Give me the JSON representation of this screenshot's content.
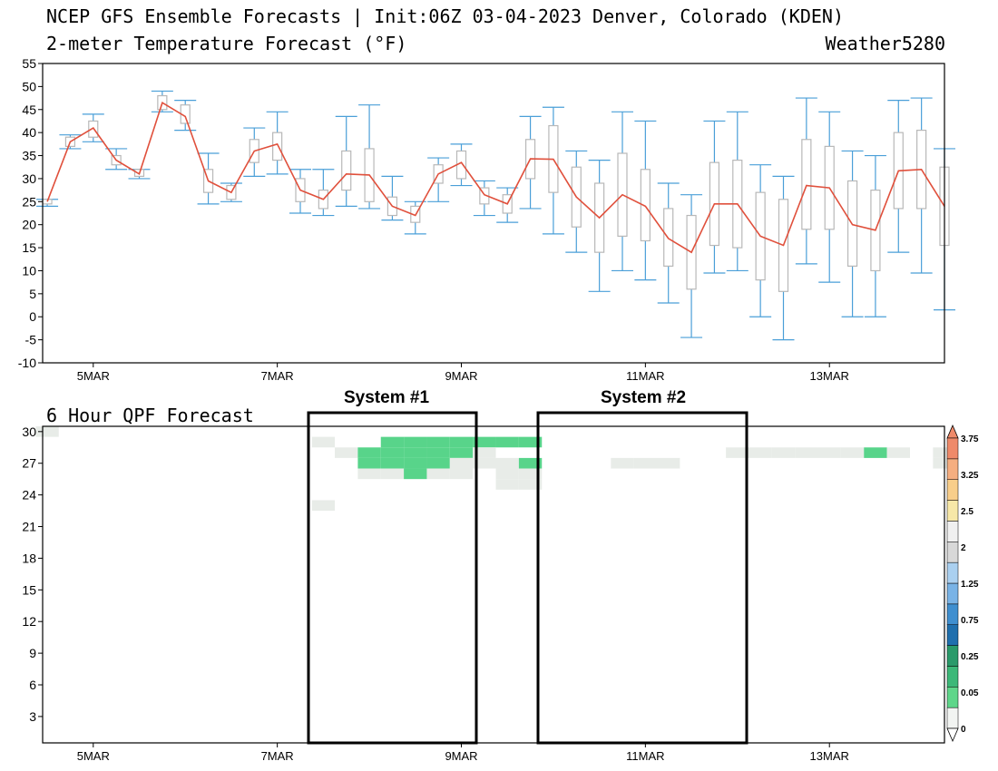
{
  "header": {
    "title": "NCEP GFS Ensemble Forecasts | Init:06Z 03-04-2023 Denver, Colorado (KDEN)",
    "subtitle": "2-meter Temperature Forecast (°F)",
    "brand": "Weather5280",
    "qpf_title": "6 Hour QPF Forecast"
  },
  "annotations": {
    "system1": "System #1",
    "system2": "System #2"
  },
  "colors": {
    "mean_line": "#e0503c",
    "whisker": "#4a9fd8",
    "box": "#b8b8b8"
  },
  "chart_data": [
    {
      "type": "box",
      "x_ticks": [
        {
          "x": 5,
          "label": "5MAR"
        },
        {
          "x": 7,
          "label": "7MAR"
        },
        {
          "x": 9,
          "label": "9MAR"
        },
        {
          "x": 11,
          "label": "11MAR"
        },
        {
          "x": 13,
          "label": "13MAR"
        }
      ],
      "xlim": [
        4.45,
        14.25
      ],
      "ylim": [
        -10,
        55
      ],
      "y_ticks": [
        -10,
        -5,
        0,
        5,
        10,
        15,
        20,
        25,
        30,
        35,
        40,
        45,
        50,
        55
      ],
      "x": [
        4.5,
        4.75,
        5.0,
        5.25,
        5.5,
        5.75,
        6.0,
        6.25,
        6.5,
        6.75,
        7.0,
        7.25,
        7.5,
        7.75,
        8.0,
        8.25,
        8.5,
        8.75,
        9.0,
        9.25,
        9.5,
        9.75,
        10.0,
        10.25,
        10.5,
        10.75,
        11.0,
        11.25,
        11.5,
        11.75,
        12.0,
        12.25,
        12.5,
        12.75,
        13.0,
        13.25,
        13.5,
        13.75,
        14.0,
        14.25
      ],
      "mean": [
        25,
        38,
        41,
        34,
        31,
        46.5,
        43.5,
        29.5,
        27,
        36,
        37.5,
        27.5,
        25.5,
        31,
        30.8,
        24,
        22,
        31,
        33.5,
        26.5,
        24.5,
        34.3,
        34.2,
        26,
        21.5,
        26.5,
        24,
        17,
        14,
        24.5,
        24.5,
        17.5,
        15.5,
        28.5,
        28,
        20,
        18.8,
        31.7,
        32,
        24
      ],
      "boxes": [
        [
          24.5,
          25.5
        ],
        [
          37,
          39
        ],
        [
          39,
          42.5
        ],
        [
          33,
          35
        ],
        [
          30.5,
          32
        ],
        [
          45,
          48
        ],
        [
          42,
          46
        ],
        [
          27,
          32
        ],
        [
          25.5,
          28.5
        ],
        [
          33.5,
          38.5
        ],
        [
          34,
          40
        ],
        [
          25,
          30
        ],
        [
          23.5,
          27.5
        ],
        [
          27.5,
          36
        ],
        [
          25,
          36.5
        ],
        [
          22,
          26
        ],
        [
          20.5,
          24
        ],
        [
          29,
          33
        ],
        [
          30,
          36
        ],
        [
          24.5,
          28
        ],
        [
          22.5,
          26.5
        ],
        [
          30,
          38.5
        ],
        [
          27,
          41.5
        ],
        [
          19.5,
          32.5
        ],
        [
          14,
          29
        ],
        [
          17.5,
          35.5
        ],
        [
          16.5,
          32
        ],
        [
          11,
          23.5
        ],
        [
          6,
          22
        ],
        [
          15.5,
          33.5
        ],
        [
          15,
          34
        ],
        [
          8,
          27
        ],
        [
          5.5,
          25.5
        ],
        [
          19,
          38.5
        ],
        [
          19,
          37
        ],
        [
          11,
          29.5
        ],
        [
          10,
          27.5
        ],
        [
          23.5,
          40
        ],
        [
          23.5,
          40.5
        ],
        [
          15.5,
          32.5
        ]
      ],
      "whiskers": [
        [
          24,
          25.5
        ],
        [
          36.5,
          39.5
        ],
        [
          38,
          44
        ],
        [
          32,
          36.5
        ],
        [
          30,
          32
        ],
        [
          44.5,
          49
        ],
        [
          40.5,
          47
        ],
        [
          24.5,
          35.5
        ],
        [
          25,
          29
        ],
        [
          30.5,
          41
        ],
        [
          31,
          44.5
        ],
        [
          22.5,
          32
        ],
        [
          22,
          32
        ],
        [
          24,
          43.5
        ],
        [
          23.5,
          46
        ],
        [
          21,
          30.5
        ],
        [
          18,
          25
        ],
        [
          25,
          34.5
        ],
        [
          28.5,
          37.5
        ],
        [
          22,
          29.5
        ],
        [
          20.5,
          28
        ],
        [
          23.5,
          43.5
        ],
        [
          18,
          45.5
        ],
        [
          14,
          36
        ],
        [
          5.5,
          34
        ],
        [
          10,
          44.5
        ],
        [
          8,
          42.5
        ],
        [
          3,
          29
        ],
        [
          -4.5,
          26.5
        ],
        [
          9.5,
          42.5
        ],
        [
          10,
          44.5
        ],
        [
          0,
          33
        ],
        [
          -5,
          30.5
        ],
        [
          11.5,
          47.5
        ],
        [
          7.5,
          44.5
        ],
        [
          0,
          36
        ],
        [
          0,
          35
        ],
        [
          14,
          47
        ],
        [
          9.5,
          47.5
        ],
        [
          1.5,
          36.5
        ]
      ]
    },
    {
      "type": "heatmap",
      "title": "6 Hour QPF Forecast",
      "x_ticks": [
        {
          "x": 5,
          "label": "5MAR"
        },
        {
          "x": 7,
          "label": "7MAR"
        },
        {
          "x": 9,
          "label": "9MAR"
        },
        {
          "x": 11,
          "label": "11MAR"
        },
        {
          "x": 13,
          "label": "13MAR"
        }
      ],
      "xlim": [
        4.45,
        14.25
      ],
      "y_ticks": [
        3,
        6,
        9,
        12,
        15,
        18,
        21,
        24,
        27,
        30
      ],
      "ylim": [
        0.5,
        30.5
      ],
      "colorbar_ticks": [
        "0",
        "0.05",
        "0.25",
        "0.75",
        "1.25",
        "2",
        "2.5",
        "3.25",
        "3.75"
      ],
      "colorbar_colors": [
        "#f2f4f2",
        "#5fd68a",
        "#3cb878",
        "#2a9a6a",
        "#1f6fae",
        "#3f8fd0",
        "#79b3e6",
        "#aad0f0",
        "#d8d8d8",
        "#f0f0f0",
        "#f7e8a8",
        "#f8ce8a",
        "#f5ae80",
        "#ef8a6a"
      ],
      "x_start": 4.5,
      "x_step": 0.25,
      "level_colors": [
        "#ffffff",
        "#e8ece8",
        "#58d48a",
        "#36b070",
        "#24906a",
        "#1c72b8"
      ],
      "rows": [
        "1000000000000000000000000000000000000000",
        "0000000000001002222222000000000000000000",
        "0000000000000122222100000000001111112101",
        "0000000000000022221112000111000000000001",
        "0000000000000011211011000000000000000000",
        "0000000000000000000011000000000000000000",
        "0000000000000000000000000000000000000000",
        "0000000000001000000000000000000000000000",
        "0000000000000000000000000000000000000000",
        "0000000000000000000000000000000000000000",
        "0000000000000000000000000000000000000000",
        "0000000000000000000000000000000000000000",
        "0000000000000000000000000000000000000000",
        "0000000000000000000000000000000000000000",
        "0000000000000000000000000000000000000000",
        "0000000000000000000000000000000000000000",
        "0000000000000000000000000000000000000000",
        "0000000000000000000000000000000000000000",
        "0000000000000000000000000000000000000000",
        "0000000000000000000000000000000000000000",
        "0000000000000000000000000000000000000000",
        "0000000000000000000000000000000000000000",
        "0000000000000000000000000000000000000000",
        "0000000000000000000000000000000000000000",
        "0000000000000000000000000000000000000000",
        "0000000000000000000000000000000000000000",
        "0000000000000000000000000000000000000000",
        "0000000000000000000000000000000000000000",
        "0000000000000000000000000000000000000000",
        "0000000000000000000000000000000000000000"
      ]
    }
  ]
}
